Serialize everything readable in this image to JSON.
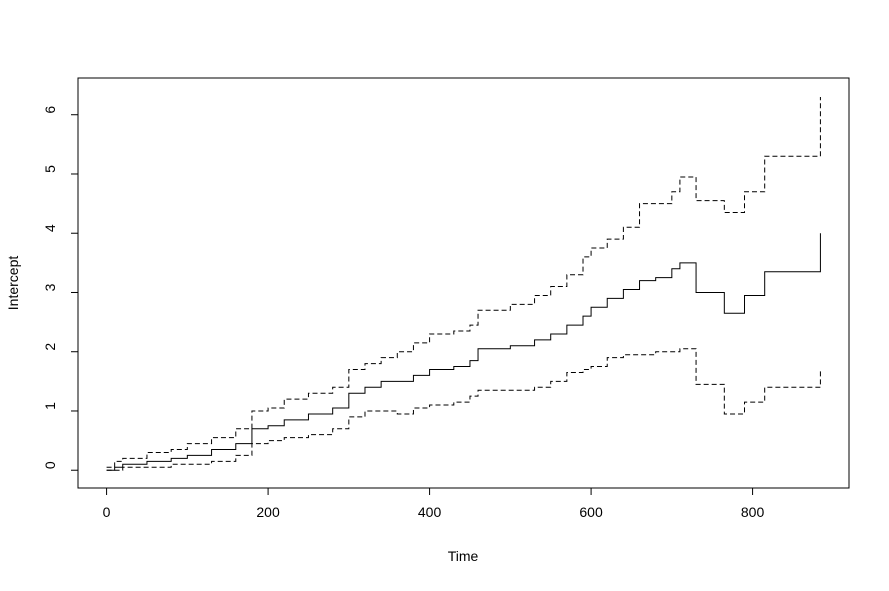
{
  "chart_data": {
    "type": "line",
    "step": true,
    "xlabel": "Time",
    "ylabel": "Intercept",
    "x": [
      0,
      10,
      20,
      50,
      80,
      100,
      130,
      160,
      180,
      200,
      220,
      250,
      280,
      300,
      320,
      340,
      360,
      380,
      400,
      430,
      450,
      460,
      500,
      530,
      550,
      570,
      590,
      600,
      620,
      640,
      660,
      680,
      700,
      710,
      730,
      765,
      790,
      815,
      884
    ],
    "series": [
      {
        "color": "#000000",
        "dash": false,
        "values": [
          0,
          0.05,
          0.1,
          0.15,
          0.2,
          0.25,
          0.35,
          0.45,
          0.7,
          0.75,
          0.85,
          0.95,
          1.05,
          1.3,
          1.4,
          1.5,
          1.5,
          1.6,
          1.7,
          1.75,
          1.85,
          2.05,
          2.1,
          2.2,
          2.3,
          2.45,
          2.6,
          2.75,
          2.9,
          3.05,
          3.2,
          3.25,
          3.4,
          3.5,
          3.0,
          2.65,
          2.95,
          3.35,
          4.0
        ]
      },
      {
        "color": "#000000",
        "dash": true,
        "values": [
          0.05,
          0.15,
          0.2,
          0.3,
          0.35,
          0.45,
          0.55,
          0.7,
          1.0,
          1.05,
          1.2,
          1.3,
          1.4,
          1.7,
          1.8,
          1.9,
          2.0,
          2.15,
          2.3,
          2.35,
          2.45,
          2.7,
          2.8,
          2.95,
          3.1,
          3.3,
          3.6,
          3.75,
          3.9,
          4.1,
          4.5,
          4.5,
          4.7,
          4.95,
          4.55,
          4.35,
          4.7,
          5.3,
          6.3
        ]
      },
      {
        "color": "#000000",
        "dash": true,
        "values": [
          0,
          0,
          0.05,
          0.05,
          0.1,
          0.1,
          0.15,
          0.25,
          0.45,
          0.5,
          0.55,
          0.6,
          0.7,
          0.9,
          1.0,
          1.0,
          0.95,
          1.05,
          1.1,
          1.15,
          1.25,
          1.35,
          1.35,
          1.4,
          1.5,
          1.65,
          1.7,
          1.75,
          1.9,
          1.95,
          1.95,
          2.0,
          2.0,
          2.05,
          1.45,
          0.95,
          1.15,
          1.4,
          1.7
        ]
      }
    ],
    "xlim": [
      -35.4,
      919.4
    ],
    "xticks": [
      0,
      200,
      400,
      600,
      800
    ],
    "ylim": [
      -0.3,
      6.62
    ],
    "yticks": [
      0,
      1,
      2,
      3,
      4,
      5,
      6
    ]
  }
}
